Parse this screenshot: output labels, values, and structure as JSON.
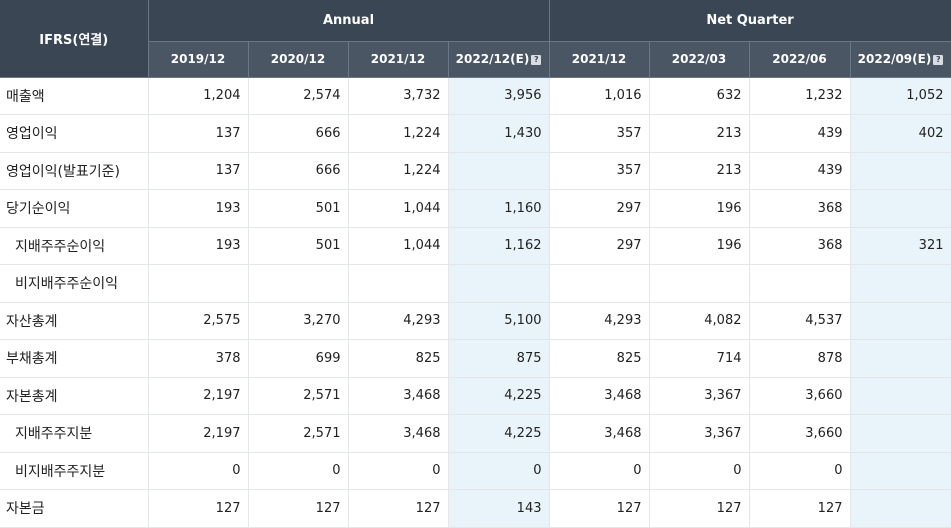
{
  "header": {
    "corner": "IFRS(연결)",
    "group_annual": "Annual",
    "group_quarter": "Net Quarter",
    "estimate_icon": "?",
    "columns": [
      "2019/12",
      "2020/12",
      "2021/12",
      "2022/12(E)",
      "2021/12",
      "2022/03",
      "2022/06",
      "2022/09(E)"
    ]
  },
  "rows": [
    {
      "label": "매출액",
      "values": [
        "1,204",
        "2,574",
        "3,732",
        "3,956",
        "1,016",
        "632",
        "1,232",
        "1,052"
      ]
    },
    {
      "label": "영업이익",
      "values": [
        "137",
        "666",
        "1,224",
        "1,430",
        "357",
        "213",
        "439",
        "402"
      ]
    },
    {
      "label": "영업이익(발표기준)",
      "values": [
        "137",
        "666",
        "1,224",
        "",
        "357",
        "213",
        "439",
        ""
      ]
    },
    {
      "label": "당기순이익",
      "values": [
        "193",
        "501",
        "1,044",
        "1,160",
        "297",
        "196",
        "368",
        ""
      ]
    },
    {
      "label": "지배주주순이익",
      "values": [
        "193",
        "501",
        "1,044",
        "1,162",
        "297",
        "196",
        "368",
        "321"
      ]
    },
    {
      "label": "비지배주주순이익",
      "values": [
        "",
        "",
        "",
        "",
        "",
        "",
        "",
        ""
      ]
    },
    {
      "label": "자산총계",
      "values": [
        "2,575",
        "3,270",
        "4,293",
        "5,100",
        "4,293",
        "4,082",
        "4,537",
        ""
      ]
    },
    {
      "label": "부채총계",
      "values": [
        "378",
        "699",
        "825",
        "875",
        "825",
        "714",
        "878",
        ""
      ]
    },
    {
      "label": "자본총계",
      "values": [
        "2,197",
        "2,571",
        "3,468",
        "4,225",
        "3,468",
        "3,367",
        "3,660",
        ""
      ]
    },
    {
      "label": "지배주주지분",
      "values": [
        "2,197",
        "2,571",
        "3,468",
        "4,225",
        "3,468",
        "3,367",
        "3,660",
        ""
      ]
    },
    {
      "label": "비지배주주지분",
      "values": [
        "0",
        "0",
        "0",
        "0",
        "0",
        "0",
        "0",
        ""
      ]
    },
    {
      "label": "자본금",
      "values": [
        "127",
        "127",
        "127",
        "143",
        "127",
        "127",
        "127",
        ""
      ]
    }
  ]
}
